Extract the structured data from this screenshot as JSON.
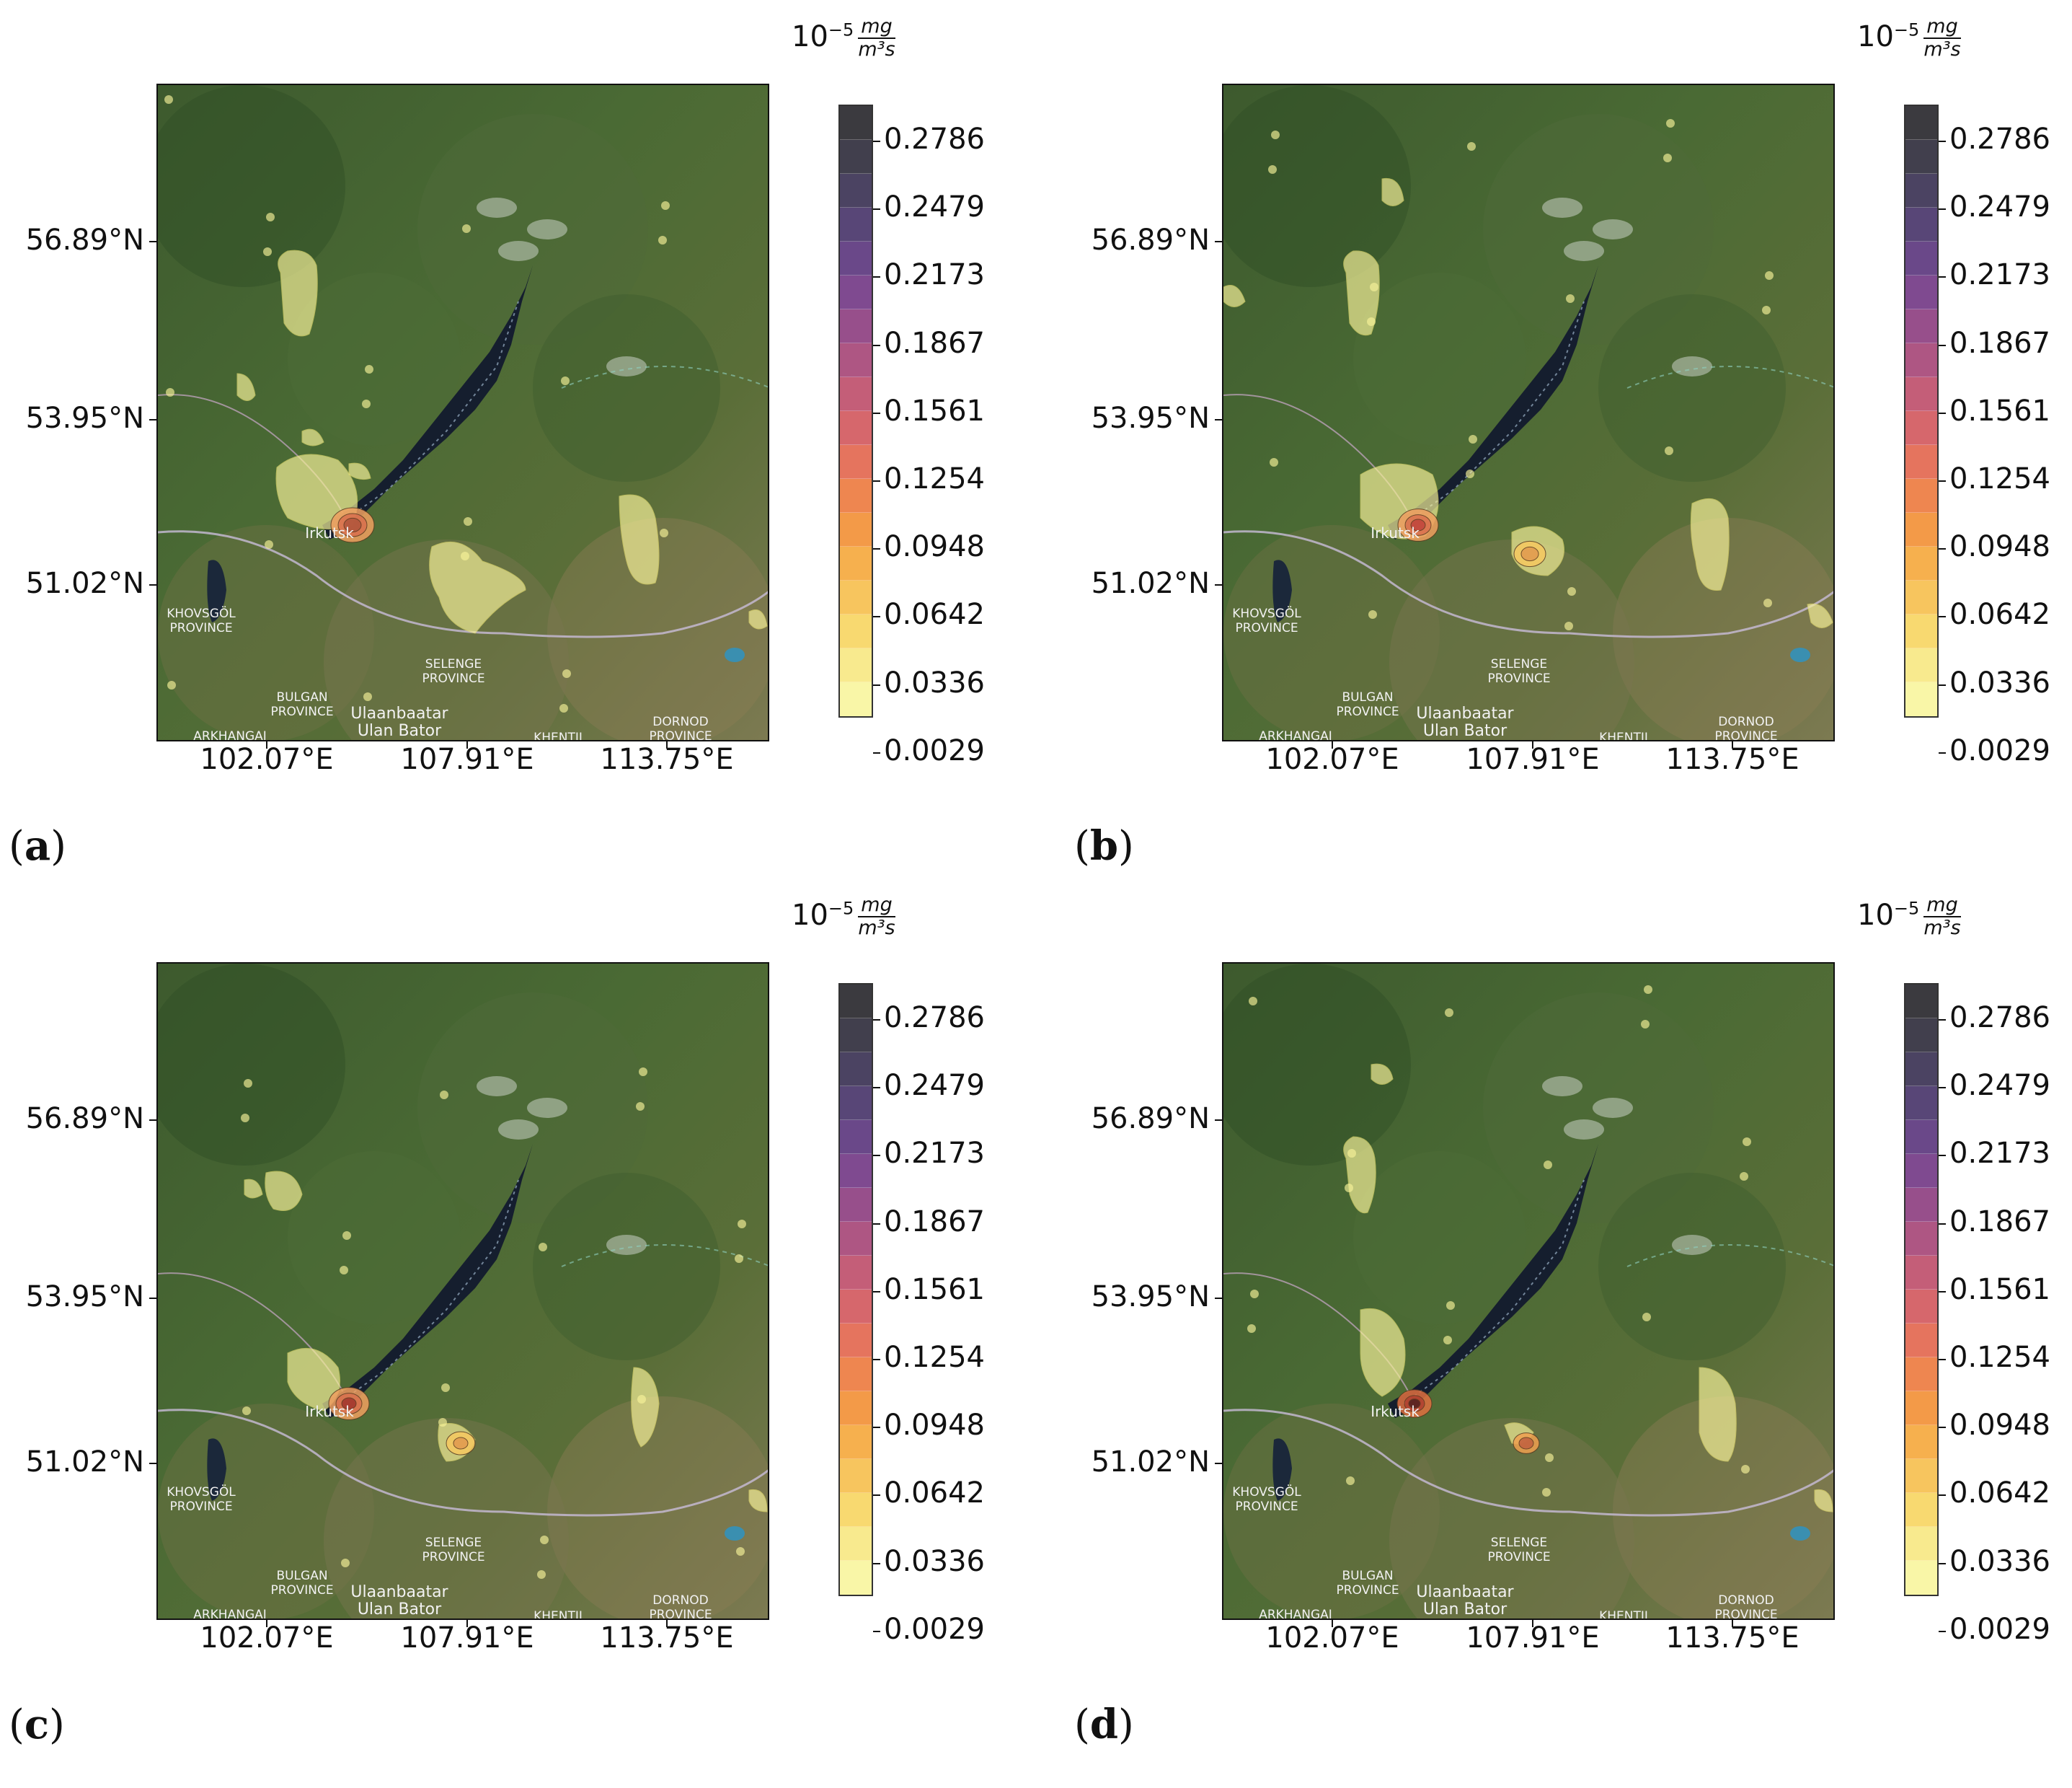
{
  "unit": {
    "base": "10",
    "exponent": "−5",
    "numerator": "mg",
    "denominator": "m³s"
  },
  "colorbar": {
    "labels": [
      "0.2786",
      "0.2479",
      "0.2173",
      "0.1867",
      "0.1561",
      "0.1254",
      "0.0948",
      "0.0642",
      "0.0336",
      "0.0029"
    ],
    "colors": [
      "#f9f6a7",
      "#f8ea8e",
      "#f8d970",
      "#f7c55e",
      "#f6b04e",
      "#f39a48",
      "#ee8650",
      "#e5745e",
      "#d6676c",
      "#c45e78",
      "#ae5683",
      "#974f8b",
      "#7f4a90",
      "#6a4889",
      "#584677",
      "#4b4362",
      "#413f4d",
      "#3b3a3f"
    ]
  },
  "axes": {
    "lat_labels": [
      "56.89°N",
      "53.95°N",
      "51.02°N"
    ],
    "lon_labels": [
      "102.07°E",
      "107.91°E",
      "113.75°E"
    ]
  },
  "map_labels": {
    "city": "Irkutsk",
    "khovsgol": [
      "KHOVSGÖL",
      "PROVINCE"
    ],
    "selenge": [
      "SELENGE",
      "PROVINCE"
    ],
    "bulgan": [
      "BULGAN",
      "PROVINCE"
    ],
    "ulaanbaatar": [
      "Ulaanbaatar",
      "Ulan Bator"
    ],
    "arkhangai": "ARKHANGAI",
    "khentii": "KHENTII",
    "dornod": [
      "DORNOD",
      "PROVINCE"
    ]
  },
  "panels": [
    {
      "label": "a"
    },
    {
      "label": "b"
    },
    {
      "label": "c"
    },
    {
      "label": "d"
    }
  ]
}
